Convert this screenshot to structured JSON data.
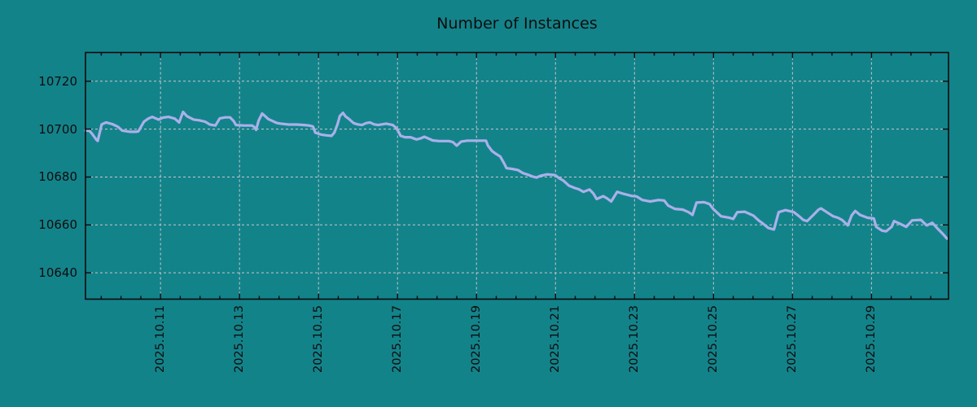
{
  "title": "Number of Instances",
  "colors": {
    "background": "#13838a",
    "line": "#aab0ea",
    "grid": "#c8c8c8",
    "axis": "#0a0a0a",
    "text": "#0d0d0d"
  },
  "chart_data": {
    "type": "line",
    "title": "Number of Instances",
    "xlabel": "",
    "ylabel": "",
    "x_unit": "days since 2025-10-09 00:00",
    "xlim": [
      0.1,
      21.95
    ],
    "ylim": [
      10629,
      10732
    ],
    "grid": true,
    "legend": "none",
    "x_ticks": [
      {
        "day": 2,
        "label": "2025.10.11"
      },
      {
        "day": 4,
        "label": "2025.10.13"
      },
      {
        "day": 6,
        "label": "2025.10.15"
      },
      {
        "day": 8,
        "label": "2025.10.17"
      },
      {
        "day": 10,
        "label": "2025.10.19"
      },
      {
        "day": 12,
        "label": "2025.10.21"
      },
      {
        "day": 14,
        "label": "2025.10.23"
      },
      {
        "day": 16,
        "label": "2025.10.25"
      },
      {
        "day": 18,
        "label": "2025.10.27"
      },
      {
        "day": 20,
        "label": "2025.10.29"
      }
    ],
    "x_minor_tick_interval_days": 0.5,
    "y_ticks": [
      10640,
      10660,
      10680,
      10700,
      10720
    ],
    "series": [
      {
        "name": "Number of Instances",
        "color": "#aab0ea",
        "points": [
          [
            0.1,
            10699.4
          ],
          [
            0.2,
            10699.3
          ],
          [
            0.27,
            10698.0
          ],
          [
            0.37,
            10695.7
          ],
          [
            0.41,
            10695.1
          ],
          [
            0.51,
            10702.0
          ],
          [
            0.62,
            10702.8
          ],
          [
            0.78,
            10702.1
          ],
          [
            0.92,
            10701.0
          ],
          [
            1.03,
            10699.4
          ],
          [
            1.23,
            10698.9
          ],
          [
            1.38,
            10698.9
          ],
          [
            1.44,
            10699.1
          ],
          [
            1.58,
            10703.1
          ],
          [
            1.69,
            10704.4
          ],
          [
            1.79,
            10705.1
          ],
          [
            1.89,
            10704.4
          ],
          [
            1.95,
            10704.0
          ],
          [
            2.06,
            10704.8
          ],
          [
            2.2,
            10705.1
          ],
          [
            2.36,
            10704.4
          ],
          [
            2.47,
            10702.8
          ],
          [
            2.57,
            10707.2
          ],
          [
            2.67,
            10705.4
          ],
          [
            2.84,
            10704.0
          ],
          [
            2.98,
            10703.7
          ],
          [
            3.13,
            10703.1
          ],
          [
            3.25,
            10701.9
          ],
          [
            3.39,
            10701.5
          ],
          [
            3.5,
            10704.5
          ],
          [
            3.64,
            10704.9
          ],
          [
            3.76,
            10704.9
          ],
          [
            3.85,
            10703.4
          ],
          [
            3.91,
            10701.7
          ],
          [
            4.11,
            10701.5
          ],
          [
            4.32,
            10701.5
          ],
          [
            4.38,
            10700.8
          ],
          [
            4.42,
            10699.7
          ],
          [
            4.48,
            10703.4
          ],
          [
            4.57,
            10706.5
          ],
          [
            4.63,
            10705.7
          ],
          [
            4.73,
            10704.2
          ],
          [
            4.83,
            10703.4
          ],
          [
            4.94,
            10702.6
          ],
          [
            5.04,
            10702.3
          ],
          [
            5.24,
            10701.9
          ],
          [
            5.45,
            10701.9
          ],
          [
            5.64,
            10701.7
          ],
          [
            5.76,
            10701.5
          ],
          [
            5.86,
            10701.1
          ],
          [
            5.92,
            10698.5
          ],
          [
            6.07,
            10697.7
          ],
          [
            6.21,
            10697.4
          ],
          [
            6.33,
            10697.2
          ],
          [
            6.4,
            10698.5
          ],
          [
            6.48,
            10702.0
          ],
          [
            6.54,
            10705.5
          ],
          [
            6.62,
            10706.8
          ],
          [
            6.68,
            10705.4
          ],
          [
            6.79,
            10704.0
          ],
          [
            6.89,
            10702.5
          ],
          [
            6.99,
            10702.0
          ],
          [
            7.1,
            10701.7
          ],
          [
            7.2,
            10702.5
          ],
          [
            7.3,
            10702.8
          ],
          [
            7.41,
            10702.0
          ],
          [
            7.51,
            10701.7
          ],
          [
            7.71,
            10702.3
          ],
          [
            7.88,
            10701.7
          ],
          [
            7.96,
            10700.6
          ],
          [
            8.02,
            10699.1
          ],
          [
            8.08,
            10697.2
          ],
          [
            8.19,
            10696.6
          ],
          [
            8.33,
            10696.6
          ],
          [
            8.48,
            10695.7
          ],
          [
            8.58,
            10696.1
          ],
          [
            8.68,
            10696.8
          ],
          [
            8.78,
            10696.1
          ],
          [
            8.89,
            10695.3
          ],
          [
            9.05,
            10695.0
          ],
          [
            9.3,
            10695.0
          ],
          [
            9.4,
            10694.6
          ],
          [
            9.5,
            10693.1
          ],
          [
            9.61,
            10694.8
          ],
          [
            9.77,
            10695.2
          ],
          [
            10.08,
            10695.2
          ],
          [
            10.24,
            10695.2
          ],
          [
            10.29,
            10693.1
          ],
          [
            10.39,
            10690.9
          ],
          [
            10.49,
            10689.7
          ],
          [
            10.6,
            10688.6
          ],
          [
            10.7,
            10685.7
          ],
          [
            10.76,
            10683.7
          ],
          [
            10.9,
            10683.4
          ],
          [
            11.05,
            10682.9
          ],
          [
            11.17,
            10681.7
          ],
          [
            11.31,
            10680.9
          ],
          [
            11.42,
            10680.2
          ],
          [
            11.52,
            10679.8
          ],
          [
            11.62,
            10680.5
          ],
          [
            11.79,
            10681.1
          ],
          [
            11.99,
            10680.8
          ],
          [
            12.1,
            10679.4
          ],
          [
            12.2,
            10678.5
          ],
          [
            12.34,
            10676.4
          ],
          [
            12.49,
            10675.4
          ],
          [
            12.59,
            10674.9
          ],
          [
            12.71,
            10673.8
          ],
          [
            12.86,
            10674.8
          ],
          [
            12.96,
            10673.1
          ],
          [
            13.04,
            10670.8
          ],
          [
            13.21,
            10672.0
          ],
          [
            13.31,
            10671.0
          ],
          [
            13.41,
            10669.8
          ],
          [
            13.56,
            10673.8
          ],
          [
            13.72,
            10673.0
          ],
          [
            13.93,
            10672.1
          ],
          [
            14.05,
            10671.9
          ],
          [
            14.2,
            10670.4
          ],
          [
            14.4,
            10669.8
          ],
          [
            14.61,
            10670.4
          ],
          [
            14.75,
            10670.2
          ],
          [
            14.85,
            10668.1
          ],
          [
            15.02,
            10666.7
          ],
          [
            15.22,
            10666.4
          ],
          [
            15.37,
            10665.3
          ],
          [
            15.47,
            10664.2
          ],
          [
            15.57,
            10669.3
          ],
          [
            15.76,
            10669.5
          ],
          [
            15.9,
            10668.7
          ],
          [
            15.99,
            10666.7
          ],
          [
            16.19,
            10663.6
          ],
          [
            16.4,
            10663.0
          ],
          [
            16.5,
            10662.5
          ],
          [
            16.6,
            10665.3
          ],
          [
            16.79,
            10665.5
          ],
          [
            17.01,
            10663.9
          ],
          [
            17.14,
            10661.9
          ],
          [
            17.28,
            10660.2
          ],
          [
            17.39,
            10658.7
          ],
          [
            17.53,
            10658.1
          ],
          [
            17.65,
            10665.3
          ],
          [
            17.82,
            10666.2
          ],
          [
            18.04,
            10665.3
          ],
          [
            18.17,
            10663.6
          ],
          [
            18.27,
            10662.1
          ],
          [
            18.37,
            10661.6
          ],
          [
            18.52,
            10664.0
          ],
          [
            18.66,
            10666.4
          ],
          [
            18.72,
            10666.9
          ],
          [
            18.87,
            10665.3
          ],
          [
            19.03,
            10663.6
          ],
          [
            19.15,
            10663.0
          ],
          [
            19.26,
            10662.0
          ],
          [
            19.4,
            10659.8
          ],
          [
            19.5,
            10664.0
          ],
          [
            19.59,
            10665.8
          ],
          [
            19.71,
            10664.2
          ],
          [
            19.9,
            10663.0
          ],
          [
            20.06,
            10662.7
          ],
          [
            20.12,
            10659.2
          ],
          [
            20.27,
            10657.6
          ],
          [
            20.37,
            10657.3
          ],
          [
            20.51,
            10659.2
          ],
          [
            20.57,
            10661.6
          ],
          [
            20.72,
            10660.5
          ],
          [
            20.88,
            10659.2
          ],
          [
            21.03,
            10661.9
          ],
          [
            21.25,
            10662.1
          ],
          [
            21.4,
            10659.8
          ],
          [
            21.54,
            10660.9
          ],
          [
            21.66,
            10658.7
          ],
          [
            21.81,
            10656.2
          ],
          [
            21.91,
            10654.3
          ]
        ]
      }
    ]
  }
}
